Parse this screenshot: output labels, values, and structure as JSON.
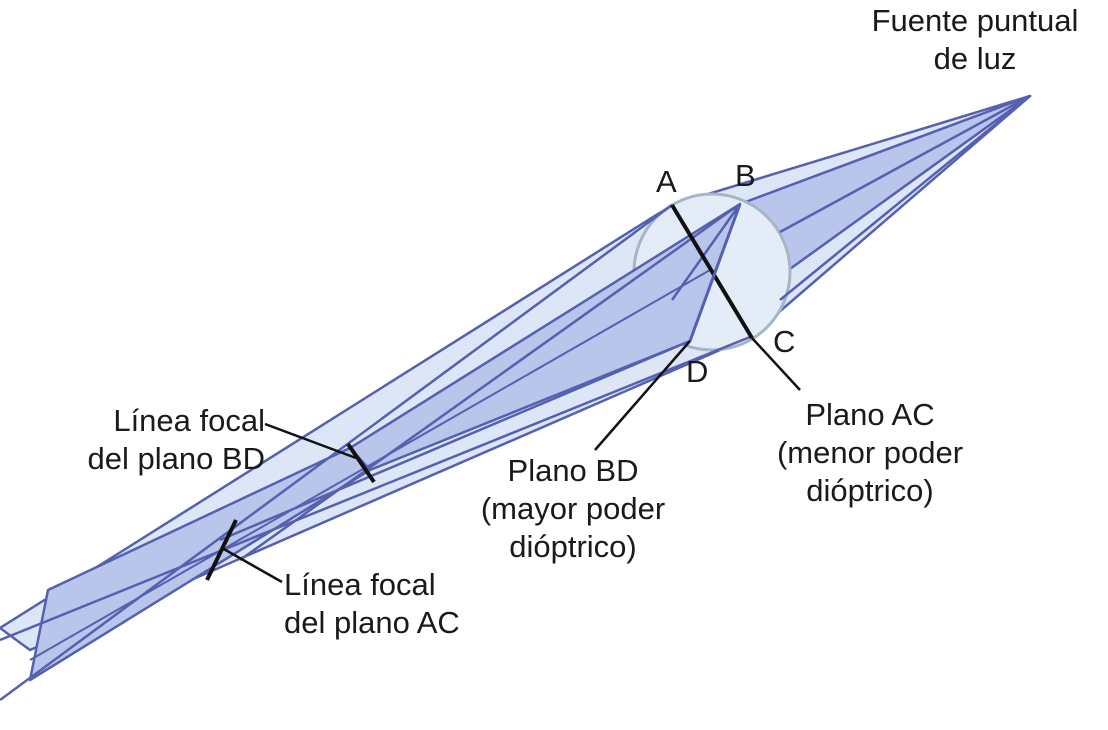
{
  "labels": {
    "source_line1": "Fuente puntual",
    "source_line2": "de luz",
    "point_a": "A",
    "point_b": "B",
    "point_c": "C",
    "point_d": "D",
    "plane_ac_line1": "Plano AC",
    "plane_ac_line2": "(menor poder",
    "plane_ac_line3": "dióptrico)",
    "plane_bd_line1": "Plano BD",
    "plane_bd_line2": "(mayor poder",
    "plane_bd_line3": "dióptrico)",
    "focal_bd_line1": "Línea focal",
    "focal_bd_line2": "del plano BD",
    "focal_ac_line1": "Línea focal",
    "focal_ac_line2": "del plano AC"
  },
  "colors": {
    "beam_stroke": "#5560b0",
    "beam_fill_light": "#dce6f7",
    "beam_fill_mid": "#b9c5ea",
    "beam_fill_dark": "#9eaede",
    "lens_stroke": "#a6b6c6",
    "lens_fill": "#e4ecf8",
    "focal_line": "#111111"
  }
}
